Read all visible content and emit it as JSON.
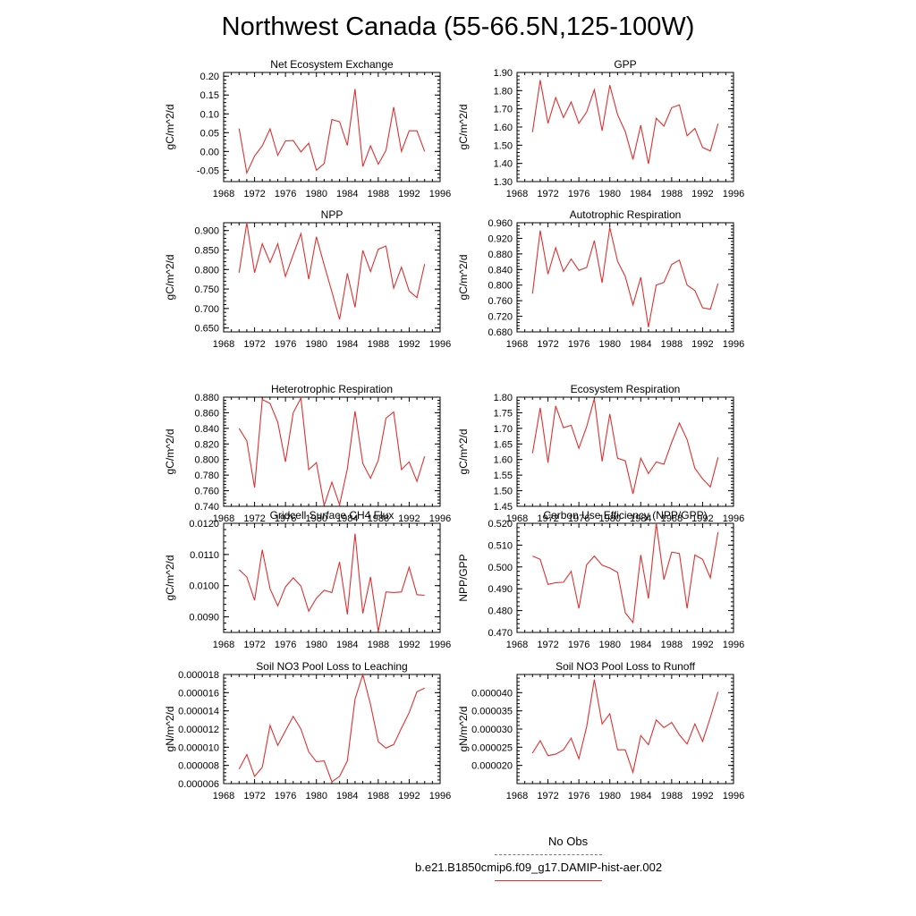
{
  "figure": {
    "title": "Northwest Canada (55-66.5N,125-100W)"
  },
  "legend": {
    "entries": [
      {
        "label": "No Obs",
        "color": "#6a6ae6",
        "style": "dashed"
      },
      {
        "label": "b.e21.B1850cmip6.f09_g17.DAMIP-hist-aer.002",
        "color": "#e03030",
        "style": "solid"
      }
    ]
  },
  "chart_data": [
    {
      "type": "line",
      "title": "Net Ecosystem Exchange",
      "ylabel": "gC/m^2/d",
      "xlim": [
        1968,
        1996
      ],
      "xticks": [
        1968,
        1972,
        1976,
        1980,
        1984,
        1988,
        1992,
        1996
      ],
      "ylim": [
        -0.08,
        0.21
      ],
      "yticks": [
        -0.05,
        0.0,
        0.05,
        0.1,
        0.15,
        0.2
      ],
      "ytick_labels": [
        "-0.05",
        "0.00",
        "0.05",
        "0.10",
        "0.15",
        "0.20"
      ],
      "x": [
        1970,
        1971,
        1972,
        1973,
        1974,
        1975,
        1976,
        1977,
        1978,
        1979,
        1980,
        1981,
        1982,
        1983,
        1984,
        1985,
        1986,
        1987,
        1988,
        1989,
        1990,
        1991,
        1992,
        1993,
        1994
      ],
      "series": [
        {
          "name": "b.e21.B1850cmip6.f09_g17.DAMIP-hist-aer.002",
          "color": "#e03030",
          "values": [
            0.061,
            -0.057,
            -0.012,
            0.015,
            0.06,
            -0.01,
            0.028,
            0.029,
            -0.001,
            0.022,
            -0.05,
            -0.032,
            0.085,
            0.079,
            0.016,
            0.166,
            -0.04,
            0.015,
            -0.034,
            0.003,
            0.118,
            0.0,
            0.055,
            0.055,
            0.0
          ]
        }
      ]
    },
    {
      "type": "line",
      "title": "GPP",
      "ylabel": "gC/m^2/d",
      "xlim": [
        1968,
        1996
      ],
      "xticks": [
        1968,
        1972,
        1976,
        1980,
        1984,
        1988,
        1992,
        1996
      ],
      "ylim": [
        1.3,
        1.9
      ],
      "yticks": [
        1.3,
        1.4,
        1.5,
        1.6,
        1.7,
        1.8,
        1.9
      ],
      "ytick_labels": [
        "1.30",
        "1.40",
        "1.50",
        "1.60",
        "1.70",
        "1.80",
        "1.90"
      ],
      "x": [
        1970,
        1971,
        1972,
        1973,
        1974,
        1975,
        1976,
        1977,
        1978,
        1979,
        1980,
        1981,
        1982,
        1983,
        1984,
        1985,
        1986,
        1987,
        1988,
        1989,
        1990,
        1991,
        1992,
        1993,
        1994
      ],
      "series": [
        {
          "name": "b.e21.B1850cmip6.f09_g17.DAMIP-hist-aer.002",
          "color": "#e03030",
          "values": [
            1.572,
            1.858,
            1.62,
            1.762,
            1.652,
            1.738,
            1.62,
            1.682,
            1.805,
            1.58,
            1.83,
            1.668,
            1.575,
            1.422,
            1.61,
            1.398,
            1.648,
            1.605,
            1.706,
            1.722,
            1.552,
            1.592,
            1.488,
            1.468,
            1.618
          ]
        }
      ]
    },
    {
      "type": "line",
      "title": "NPP",
      "ylabel": "gC/m^2/d",
      "xlim": [
        1968,
        1996
      ],
      "xticks": [
        1968,
        1972,
        1976,
        1980,
        1984,
        1988,
        1992,
        1996
      ],
      "ylim": [
        0.64,
        0.92
      ],
      "yticks": [
        0.65,
        0.7,
        0.75,
        0.8,
        0.85,
        0.9
      ],
      "ytick_labels": [
        "0.650",
        "0.700",
        "0.750",
        "0.800",
        "0.850",
        "0.900"
      ],
      "x": [
        1970,
        1971,
        1972,
        1973,
        1974,
        1975,
        1976,
        1977,
        1978,
        1979,
        1980,
        1981,
        1982,
        1983,
        1984,
        1985,
        1986,
        1987,
        1988,
        1989,
        1990,
        1991,
        1992,
        1993,
        1994
      ],
      "series": [
        {
          "name": "b.e21.B1850cmip6.f09_g17.DAMIP-hist-aer.002",
          "color": "#e03030",
          "values": [
            0.792,
            0.92,
            0.792,
            0.866,
            0.818,
            0.866,
            0.782,
            0.838,
            0.892,
            0.775,
            0.884,
            0.812,
            0.743,
            0.672,
            0.79,
            0.703,
            0.849,
            0.795,
            0.852,
            0.86,
            0.752,
            0.806,
            0.745,
            0.728,
            0.814
          ]
        }
      ]
    },
    {
      "type": "line",
      "title": "Autotrophic Respiration",
      "ylabel": "gC/m^2/d",
      "xlim": [
        1968,
        1996
      ],
      "xticks": [
        1968,
        1972,
        1976,
        1980,
        1984,
        1988,
        1992,
        1996
      ],
      "ylim": [
        0.68,
        0.96
      ],
      "yticks": [
        0.68,
        0.72,
        0.76,
        0.8,
        0.84,
        0.88,
        0.92,
        0.96
      ],
      "ytick_labels": [
        "0.680",
        "0.720",
        "0.760",
        "0.800",
        "0.840",
        "0.880",
        "0.920",
        "0.960"
      ],
      "x": [
        1970,
        1971,
        1972,
        1973,
        1974,
        1975,
        1976,
        1977,
        1978,
        1979,
        1980,
        1981,
        1982,
        1983,
        1984,
        1985,
        1986,
        1987,
        1988,
        1989,
        1990,
        1991,
        1992,
        1993,
        1994
      ],
      "series": [
        {
          "name": "b.e21.B1850cmip6.f09_g17.DAMIP-hist-aer.002",
          "color": "#e03030",
          "values": [
            0.778,
            0.94,
            0.828,
            0.896,
            0.835,
            0.867,
            0.838,
            0.845,
            0.914,
            0.806,
            0.948,
            0.861,
            0.822,
            0.749,
            0.82,
            0.692,
            0.8,
            0.807,
            0.853,
            0.864,
            0.8,
            0.786,
            0.742,
            0.738,
            0.804
          ]
        }
      ]
    },
    {
      "type": "line",
      "title": "Heterotrophic Respiration",
      "ylabel": "gC/m^2/d",
      "xlim": [
        1968,
        1996
      ],
      "xticks": [
        1968,
        1972,
        1976,
        1980,
        1984,
        1988,
        1992,
        1996
      ],
      "ylim": [
        0.74,
        0.88
      ],
      "yticks": [
        0.74,
        0.76,
        0.78,
        0.8,
        0.82,
        0.84,
        0.86,
        0.88
      ],
      "ytick_labels": [
        "0.740",
        "0.760",
        "0.780",
        "0.800",
        "0.820",
        "0.840",
        "0.860",
        "0.880"
      ],
      "x": [
        1970,
        1971,
        1972,
        1973,
        1974,
        1975,
        1976,
        1977,
        1978,
        1979,
        1980,
        1981,
        1982,
        1983,
        1984,
        1985,
        1986,
        1987,
        1988,
        1989,
        1990,
        1991,
        1992,
        1993,
        1994
      ],
      "series": [
        {
          "name": "b.e21.B1850cmip6.f09_g17.DAMIP-hist-aer.002",
          "color": "#e03030",
          "values": [
            0.84,
            0.824,
            0.764,
            0.877,
            0.872,
            0.848,
            0.797,
            0.86,
            0.879,
            0.787,
            0.796,
            0.741,
            0.771,
            0.742,
            0.788,
            0.862,
            0.795,
            0.776,
            0.799,
            0.853,
            0.861,
            0.787,
            0.797,
            0.772,
            0.804
          ]
        }
      ]
    },
    {
      "type": "line",
      "title": "Ecosystem Respiration",
      "ylabel": "gC/m^2/d",
      "xlim": [
        1968,
        1996
      ],
      "xticks": [
        1968,
        1972,
        1976,
        1980,
        1984,
        1988,
        1992,
        1996
      ],
      "ylim": [
        1.45,
        1.8
      ],
      "yticks": [
        1.45,
        1.5,
        1.55,
        1.6,
        1.65,
        1.7,
        1.75,
        1.8
      ],
      "ytick_labels": [
        "1.45",
        "1.50",
        "1.55",
        "1.60",
        "1.65",
        "1.70",
        "1.75",
        "1.80"
      ],
      "x": [
        1970,
        1971,
        1972,
        1973,
        1974,
        1975,
        1976,
        1977,
        1978,
        1979,
        1980,
        1981,
        1982,
        1983,
        1984,
        1985,
        1986,
        1987,
        1988,
        1989,
        1990,
        1991,
        1992,
        1993,
        1994
      ],
      "series": [
        {
          "name": "b.e21.B1850cmip6.f09_g17.DAMIP-hist-aer.002",
          "color": "#e03030",
          "values": [
            1.62,
            1.766,
            1.59,
            1.772,
            1.702,
            1.71,
            1.636,
            1.705,
            1.795,
            1.594,
            1.746,
            1.604,
            1.596,
            1.49,
            1.604,
            1.555,
            1.592,
            1.585,
            1.655,
            1.717,
            1.664,
            1.572,
            1.538,
            1.512,
            1.607
          ]
        }
      ]
    },
    {
      "type": "line",
      "title": "Gridcell Surface CH4 Flux",
      "ylabel": "gC/m^2/d",
      "xlim": [
        1968,
        1996
      ],
      "xticks": [
        1968,
        1972,
        1976,
        1980,
        1984,
        1988,
        1992,
        1996
      ],
      "ylim": [
        0.0085,
        0.012
      ],
      "yticks": [
        0.009,
        0.01,
        0.011,
        0.012
      ],
      "ytick_labels": [
        "0.0090",
        "0.0100",
        "0.0110",
        "0.0120"
      ],
      "x": [
        1970,
        1971,
        1972,
        1973,
        1974,
        1975,
        1976,
        1977,
        1978,
        1979,
        1980,
        1981,
        1982,
        1983,
        1984,
        1985,
        1986,
        1987,
        1988,
        1989,
        1990,
        1991,
        1992,
        1993,
        1994
      ],
      "series": [
        {
          "name": "b.e21.B1850cmip6.f09_g17.DAMIP-hist-aer.002",
          "color": "#e03030",
          "values": [
            0.01051,
            0.01028,
            0.00953,
            0.01115,
            0.0099,
            0.00935,
            0.00996,
            0.01025,
            0.00999,
            0.00918,
            0.0096,
            0.00985,
            0.00978,
            0.01076,
            0.00908,
            0.01167,
            0.00911,
            0.01028,
            0.00853,
            0.0098,
            0.00978,
            0.0098,
            0.01059,
            0.00971,
            0.00969
          ]
        }
      ]
    },
    {
      "type": "line",
      "title": "Carbon Use Efficiency (NPP/GPP)",
      "ylabel": "NPP/GPP",
      "xlim": [
        1968,
        1996
      ],
      "xticks": [
        1968,
        1972,
        1976,
        1980,
        1984,
        1988,
        1992,
        1996
      ],
      "ylim": [
        0.47,
        0.52
      ],
      "yticks": [
        0.47,
        0.48,
        0.49,
        0.5,
        0.51,
        0.52
      ],
      "ytick_labels": [
        "0.470",
        "0.480",
        "0.490",
        "0.500",
        "0.510",
        "0.520"
      ],
      "x": [
        1970,
        1971,
        1972,
        1973,
        1974,
        1975,
        1976,
        1977,
        1978,
        1979,
        1980,
        1981,
        1982,
        1983,
        1984,
        1985,
        1986,
        1987,
        1988,
        1989,
        1990,
        1991,
        1992,
        1993,
        1994
      ],
      "series": [
        {
          "name": "b.e21.B1850cmip6.f09_g17.DAMIP-hist-aer.002",
          "color": "#e03030",
          "values": [
            0.505,
            0.5035,
            0.492,
            0.4928,
            0.493,
            0.498,
            0.481,
            0.501,
            0.505,
            0.5008,
            0.4995,
            0.4975,
            0.479,
            0.4745,
            0.5055,
            0.4855,
            0.52,
            0.4942,
            0.5068,
            0.5062,
            0.481,
            0.5055,
            0.5035,
            0.495,
            0.516
          ]
        }
      ]
    },
    {
      "type": "line",
      "title": "Soil NO3 Pool Loss to Leaching",
      "ylabel": "gN/m^2/d",
      "xlim": [
        1968,
        1996
      ],
      "xticks": [
        1968,
        1972,
        1976,
        1980,
        1984,
        1988,
        1992,
        1996
      ],
      "ylim": [
        6e-06,
        1.8e-05
      ],
      "yticks": [
        6e-06,
        8e-06,
        1e-05,
        1.2e-05,
        1.4e-05,
        1.6e-05,
        1.8e-05
      ],
      "ytick_labels": [
        "0.000006",
        "0.000008",
        "0.000010",
        "0.000012",
        "0.000014",
        "0.000016",
        "0.000018"
      ],
      "x": [
        1970,
        1971,
        1972,
        1973,
        1974,
        1975,
        1976,
        1977,
        1978,
        1979,
        1980,
        1981,
        1982,
        1983,
        1984,
        1985,
        1986,
        1987,
        1988,
        1989,
        1990,
        1991,
        1992,
        1993,
        1994
      ],
      "series": [
        {
          "name": "b.e21.B1850cmip6.f09_g17.DAMIP-hist-aer.002",
          "color": "#e03030",
          "values": [
            7.6e-06,
            9.2e-06,
            6.8e-06,
            7.8e-06,
            1.24e-05,
            1.02e-05,
            1.18e-05,
            1.34e-05,
            1.2e-05,
            9.5e-06,
            8.4e-06,
            8.5e-06,
            6.2e-06,
            6.8e-06,
            8.5e-06,
            1.53e-05,
            1.8e-05,
            1.47e-05,
            1.06e-05,
            9.9e-06,
            1.03e-05,
            1.21e-05,
            1.38e-05,
            1.61e-05,
            1.65e-05
          ]
        }
      ]
    },
    {
      "type": "line",
      "title": "Soil NO3 Pool Loss to Runoff",
      "ylabel": "gN/m^2/d",
      "xlim": [
        1968,
        1996
      ],
      "xticks": [
        1968,
        1972,
        1976,
        1980,
        1984,
        1988,
        1992,
        1996
      ],
      "ylim": [
        1.5e-05,
        4.5e-05
      ],
      "yticks": [
        2e-05,
        2.5e-05,
        3e-05,
        3.5e-05,
        4e-05
      ],
      "ytick_labels": [
        "0.000020",
        "0.000025",
        "0.000030",
        "0.000035",
        "0.000040"
      ],
      "x": [
        1970,
        1971,
        1972,
        1973,
        1974,
        1975,
        1976,
        1977,
        1978,
        1979,
        1980,
        1981,
        1982,
        1983,
        1984,
        1985,
        1986,
        1987,
        1988,
        1989,
        1990,
        1991,
        1992,
        1993,
        1994
      ],
      "series": [
        {
          "name": "b.e21.B1850cmip6.f09_g17.DAMIP-hist-aer.002",
          "color": "#e03030",
          "values": [
            2.34e-05,
            2.68e-05,
            2.27e-05,
            2.31e-05,
            2.43e-05,
            2.75e-05,
            2.18e-05,
            3.06e-05,
            4.36e-05,
            3.14e-05,
            3.42e-05,
            2.43e-05,
            2.43e-05,
            1.81e-05,
            2.82e-05,
            2.57e-05,
            3.25e-05,
            3.04e-05,
            3.18e-05,
            2.84e-05,
            2.59e-05,
            3.14e-05,
            2.66e-05,
            3.32e-05,
            4.02e-05
          ]
        }
      ]
    }
  ]
}
